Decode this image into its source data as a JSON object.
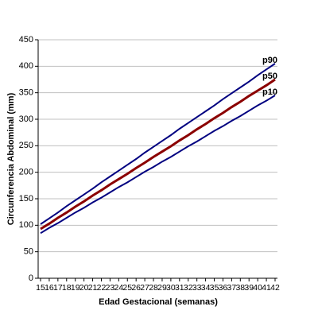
{
  "chart_data": {
    "type": "line",
    "x_label": "Edad Gestacional (semanas)",
    "y_label": "Circunferencia Abdominal (mm)",
    "categories": [
      "15",
      "16",
      "17",
      "18",
      "19",
      "20",
      "21",
      "22",
      "23",
      "24",
      "25",
      "26",
      "27",
      "28",
      "29",
      "30",
      "31",
      "32",
      "33",
      "34",
      "35",
      "36",
      "37",
      "38",
      "39",
      "40",
      "41",
      "42"
    ],
    "series": [
      {
        "name": "p90",
        "color": "#000080",
        "width": 2,
        "values": [
          102,
          113,
          124,
          136,
          147,
          158,
          169,
          181,
          192,
          203,
          214,
          225,
          237,
          248,
          259,
          270,
          282,
          293,
          304,
          315,
          326,
          338,
          349,
          360,
          371,
          383,
          394,
          405
        ]
      },
      {
        "name": "p50",
        "color": "#8b0000",
        "width": 3,
        "values": [
          93,
          103,
          114,
          124,
          135,
          145,
          156,
          166,
          177,
          187,
          197,
          208,
          218,
          229,
          239,
          249,
          260,
          270,
          281,
          291,
          302,
          312,
          323,
          333,
          344,
          354,
          364,
          375
        ]
      },
      {
        "name": "p10",
        "color": "#000080",
        "width": 2,
        "values": [
          85,
          95,
          104,
          114,
          124,
          133,
          143,
          152,
          162,
          172,
          181,
          191,
          201,
          210,
          220,
          229,
          239,
          249,
          258,
          268,
          278,
          287,
          297,
          306,
          316,
          326,
          335,
          345
        ]
      }
    ],
    "ylim": [
      0,
      450
    ],
    "yticks": [
      0,
      50,
      100,
      150,
      200,
      250,
      300,
      350,
      400,
      450
    ],
    "grid": true
  }
}
